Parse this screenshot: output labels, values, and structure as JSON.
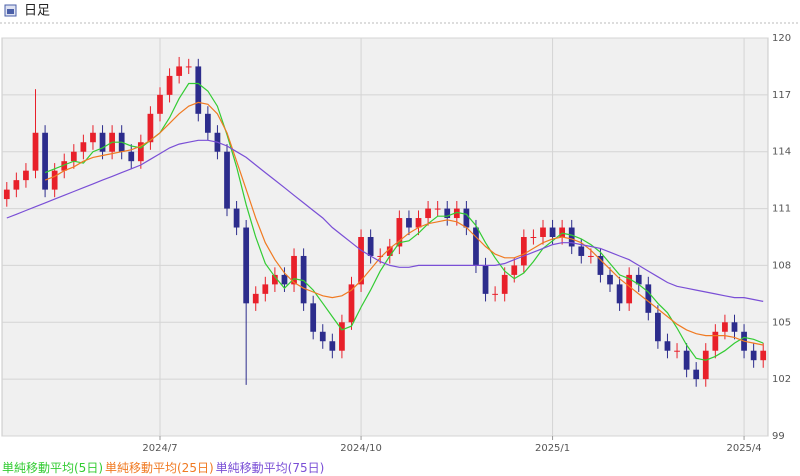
{
  "chart_data": {
    "type": "candlestick",
    "title": "日足",
    "categories": [
      null,
      null,
      null,
      null,
      null,
      null,
      null,
      null,
      null,
      null,
      null,
      null,
      null,
      null,
      null,
      null,
      "2024/7",
      null,
      null,
      null,
      null,
      null,
      null,
      null,
      null,
      null,
      null,
      null,
      null,
      null,
      null,
      null,
      null,
      null,
      null,
      null,
      null,
      "2024/10",
      null,
      null,
      null,
      null,
      null,
      null,
      null,
      null,
      null,
      null,
      null,
      null,
      null,
      null,
      null,
      null,
      null,
      null,
      null,
      "2025/1",
      null,
      null,
      null,
      null,
      null,
      null,
      null,
      null,
      null,
      null,
      null,
      null,
      null,
      null,
      null,
      null,
      null,
      null,
      null,
      "2025/4",
      null,
      null
    ],
    "open": [
      111.5,
      112,
      112.5,
      113,
      115,
      112,
      113,
      113.5,
      114,
      114.5,
      115,
      114,
      115,
      114,
      113.5,
      114.5,
      116,
      117,
      118,
      118.5,
      118.5,
      116,
      115,
      114,
      111,
      110,
      106,
      106.5,
      107,
      107.5,
      107,
      108.5,
      106,
      104.5,
      104,
      103.5,
      105,
      107,
      109.5,
      108.5,
      108.5,
      109,
      110.5,
      110,
      110.5,
      111,
      111,
      110.5,
      111,
      110,
      108,
      106.5,
      106.5,
      107.5,
      108,
      109.5,
      109.5,
      110,
      109.5,
      110,
      109,
      108.5,
      108.5,
      107.5,
      107,
      106,
      107.5,
      107,
      105.5,
      104,
      103.5,
      103.5,
      102.5,
      102,
      103.5,
      104.5,
      105,
      104.5,
      103.5,
      103
    ],
    "high": [
      112.4,
      112.9,
      113.4,
      117.3,
      115.4,
      113.4,
      113.9,
      114.4,
      114.9,
      115.4,
      115.4,
      115.4,
      115.4,
      114.4,
      114.9,
      116.4,
      117.4,
      118.4,
      119,
      118.9,
      118.9,
      116.4,
      115.4,
      114.4,
      111.4,
      110.4,
      106.9,
      107.4,
      107.9,
      107.9,
      108.9,
      108.9,
      106.4,
      104.9,
      104.4,
      105.4,
      107.4,
      109.9,
      109.9,
      108.9,
      109.4,
      110.9,
      110.9,
      110.9,
      111.4,
      111.4,
      111.4,
      111.4,
      111.4,
      110.4,
      108.4,
      106.9,
      107.9,
      108.4,
      109.9,
      109.9,
      110.4,
      110.4,
      110.4,
      110.4,
      109.4,
      108.9,
      108.9,
      107.9,
      107.4,
      107.9,
      107.9,
      107.4,
      105.9,
      104.4,
      103.9,
      103.9,
      102.9,
      103.9,
      104.9,
      105.4,
      105.4,
      104.9,
      103.9,
      103.9
    ],
    "low": [
      111.1,
      111.6,
      112.1,
      112.6,
      111.6,
      111.6,
      112.6,
      113.1,
      113.6,
      114.1,
      113.6,
      113.6,
      113.6,
      113.1,
      113.1,
      114.1,
      115.6,
      116.6,
      117.6,
      118.1,
      115.6,
      114.6,
      113.6,
      110.6,
      109.6,
      101.7,
      105.6,
      106.1,
      106.6,
      106.6,
      106.6,
      105.6,
      104.1,
      103.6,
      103.1,
      103.1,
      104.6,
      106.6,
      108.1,
      108.1,
      108.1,
      108.6,
      109.6,
      109.6,
      110.1,
      110.6,
      110.1,
      110.1,
      109.6,
      107.6,
      106.1,
      106.1,
      106.1,
      107.1,
      107.6,
      109.1,
      109.1,
      109.1,
      109.1,
      108.6,
      108.1,
      108.1,
      107.1,
      106.6,
      105.6,
      105.6,
      106.6,
      105.1,
      103.6,
      103.1,
      103.1,
      102.1,
      101.6,
      101.6,
      103.1,
      104.1,
      104.1,
      103.1,
      102.6,
      102.6
    ],
    "close": [
      112,
      112.5,
      113,
      115,
      112,
      113,
      113.5,
      114,
      114.5,
      115,
      114,
      115,
      114,
      113.5,
      114.5,
      116,
      117,
      118,
      118.5,
      118.5,
      116,
      115,
      114,
      111,
      110,
      106,
      106.5,
      107,
      107.5,
      107,
      108.5,
      106,
      104.5,
      104,
      103.5,
      105,
      107,
      109.5,
      108.5,
      108.5,
      109,
      110.5,
      110,
      110.5,
      111,
      111,
      110.5,
      111,
      110,
      108,
      106.5,
      106.5,
      107.5,
      108,
      109.5,
      109.5,
      110,
      109.5,
      110,
      109,
      108.5,
      108.5,
      107.5,
      107,
      106,
      107.5,
      107,
      105.5,
      104,
      103.5,
      103.5,
      102.5,
      102,
      103.5,
      104.5,
      105,
      104.5,
      103.5,
      103,
      103.5
    ],
    "up_color": "#e8202a",
    "down_color": "#2c2c8c",
    "series": [
      {
        "name": "単純移動平均(5日)",
        "color": "#33cc33",
        "values": [
          null,
          null,
          null,
          null,
          112.9,
          113.1,
          113.3,
          113.5,
          113.4,
          114,
          114.2,
          114.5,
          114.5,
          114.3,
          114.2,
          114.6,
          115,
          115.8,
          116.8,
          117.6,
          117.6,
          117.2,
          116.4,
          114.9,
          113.2,
          111.2,
          109.5,
          108.1,
          107.4,
          106.8,
          107.3,
          107.2,
          106.7,
          106,
          105.3,
          104.6,
          104.8,
          105.8,
          106.7,
          107.7,
          108.5,
          109.2,
          109.3,
          109.7,
          110.2,
          110.6,
          110.6,
          110.8,
          110.7,
          110.1,
          109.2,
          108.4,
          107.7,
          107.3,
          107.6,
          108.2,
          108.9,
          109.3,
          109.7,
          109.6,
          109.4,
          109.1,
          108.7,
          108.1,
          107.5,
          107.3,
          107,
          106.6,
          106,
          105.5,
          104.7,
          103.8,
          103.1,
          103,
          103.2,
          103.5,
          103.9,
          104.2,
          104.1,
          103.9
        ]
      },
      {
        "name": "単純移動平均(25日)",
        "color": "#f07a22",
        "values": [
          null,
          null,
          null,
          null,
          112.5,
          112.7,
          113,
          113.2,
          113.5,
          113.7,
          113.8,
          113.9,
          114,
          114.1,
          114.3,
          114.6,
          115,
          115.5,
          116,
          116.4,
          116.6,
          116.5,
          116,
          115,
          113.5,
          112,
          110.5,
          109.2,
          108.3,
          107.6,
          107.1,
          106.8,
          106.6,
          106.4,
          106.3,
          106.4,
          106.7,
          107.2,
          107.8,
          108.4,
          108.9,
          109.3,
          109.7,
          110,
          110.2,
          110.3,
          110.4,
          110.3,
          110,
          109.5,
          109,
          108.6,
          108.4,
          108.4,
          108.6,
          108.9,
          109.2,
          109.4,
          109.5,
          109.4,
          109.2,
          108.8,
          108.3,
          107.8,
          107.3,
          106.9,
          106.5,
          106.1,
          105.7,
          105.3,
          104.9,
          104.6,
          104.4,
          104.3,
          104.3,
          104.3,
          104.2,
          104,
          103.9,
          103.8
        ]
      },
      {
        "name": "単純移動平均(75日)",
        "color": "#7a4fd6",
        "values": [
          110.5,
          110.7,
          110.9,
          111.1,
          111.3,
          111.5,
          111.7,
          111.9,
          112.1,
          112.3,
          112.5,
          112.7,
          112.9,
          113.1,
          113.3,
          113.6,
          113.9,
          114.2,
          114.4,
          114.5,
          114.6,
          114.6,
          114.5,
          114.3,
          114,
          113.7,
          113.3,
          112.9,
          112.5,
          112.1,
          111.7,
          111.3,
          110.9,
          110.5,
          110,
          109.6,
          109.2,
          108.8,
          108.5,
          108.2,
          108,
          107.9,
          107.9,
          108,
          108,
          108,
          108,
          108,
          108,
          108,
          108,
          108,
          108.1,
          108.3,
          108.5,
          108.7,
          108.9,
          109.1,
          109.2,
          109.2,
          109.1,
          109,
          108.9,
          108.7,
          108.5,
          108.3,
          108,
          107.7,
          107.4,
          107.1,
          106.9,
          106.8,
          106.7,
          106.6,
          106.5,
          106.4,
          106.3,
          106.3,
          106.2,
          106.1
        ]
      }
    ],
    "ylim": [
      99,
      120
    ],
    "yticks": [
      99,
      102,
      105,
      108,
      111,
      114,
      117,
      120
    ],
    "grid": true
  }
}
